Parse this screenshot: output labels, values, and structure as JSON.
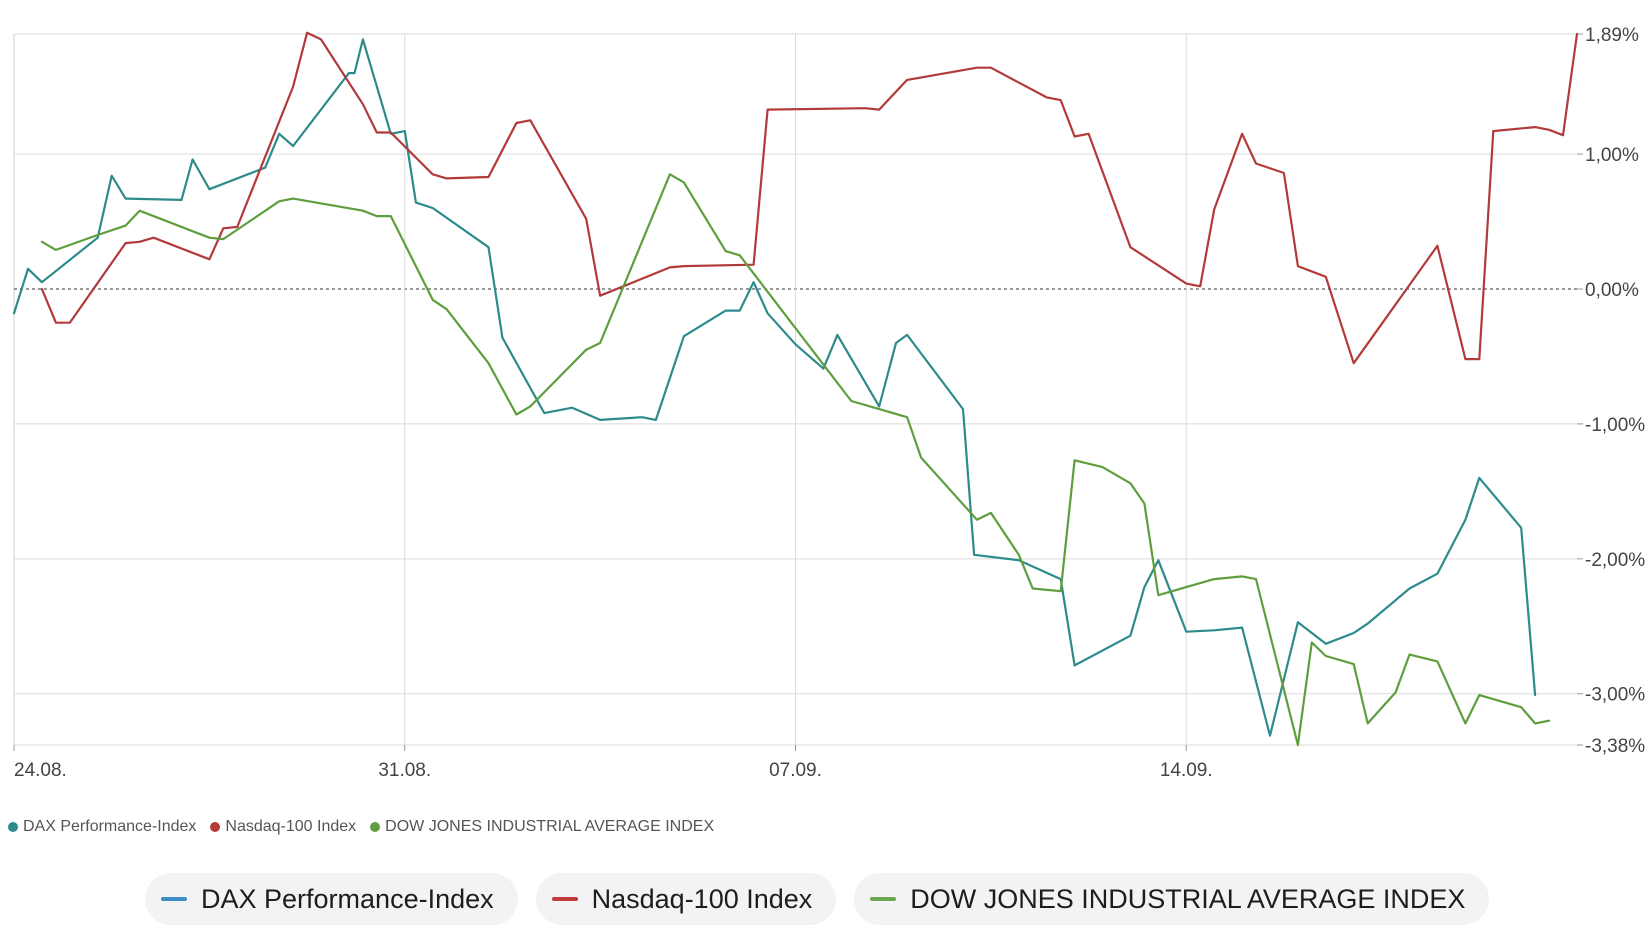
{
  "chart_data": {
    "type": "line",
    "x_ticks": [
      "24.08.",
      "31.08.",
      "07.09.",
      "14.09."
    ],
    "x_range": [
      0,
      28
    ],
    "y_ticks": [
      1.89,
      1.0,
      0.0,
      -1.0,
      -2.0,
      -3.0,
      -3.38
    ],
    "y_tick_labels": [
      "1,89%",
      "1,00%",
      "0,00%",
      "-1,00%",
      "-2,00%",
      "-3,00%",
      "-3,38%"
    ],
    "ylim": [
      -3.38,
      1.89
    ],
    "zero_line": "dashed",
    "grid": true,
    "series": [
      {
        "name": "DAX Performance-Index",
        "color": "#2e8b8b",
        "x": [
          0,
          0.25,
          0.5,
          1.5,
          1.75,
          2.0,
          3.0,
          3.2,
          3.5,
          4.5,
          4.75,
          5.0,
          6.0,
          6.1,
          6.25,
          6.75,
          7.0,
          7.2,
          7.5,
          8.5,
          8.75,
          9.5,
          10.0,
          10.5,
          11.25,
          11.5,
          12.0,
          12.75,
          13.0,
          13.25,
          13.5,
          14.0,
          14.5,
          14.75,
          15.5,
          15.8,
          16.0,
          17.0,
          17.2,
          18.0,
          18.75,
          19.0,
          20.0,
          20.25,
          20.5,
          21.0,
          21.5,
          22.0,
          22.5,
          23.0,
          23.5,
          24.0,
          24.25,
          25.0,
          25.5,
          26.0,
          26.25,
          27.0,
          27.25
        ]
      },
      {
        "name": "Nasdaq-100 Index",
        "color": "#b23a3a",
        "x": [
          0.5,
          0.75,
          1.0,
          2.0,
          2.25,
          2.5,
          3.5,
          3.75,
          4.0,
          5.0,
          5.25,
          5.5,
          6.25,
          6.5,
          6.75,
          7.5,
          7.75,
          8.5,
          9.0,
          9.25,
          10.25,
          10.5,
          11.75,
          12.0,
          13.25,
          13.5,
          15.25,
          15.5,
          16.0,
          17.25,
          17.5,
          18.5,
          18.75,
          19.0,
          19.25,
          20.0,
          21.0,
          21.25,
          21.5,
          22.0,
          22.25,
          22.75,
          23.0,
          23.5,
          24.0,
          25.5,
          26.0,
          26.25,
          26.5,
          27.25,
          27.5,
          27.75,
          28.0
        ]
      },
      {
        "name": "DOW JONES INDUSTRIAL AVERAGE INDEX",
        "color": "#5f9e3e",
        "x": [
          0.5,
          0.75,
          1.5,
          2.0,
          2.25,
          3.5,
          3.75,
          4.75,
          5.0,
          6.25,
          6.5,
          6.75,
          7.5,
          7.75,
          8.5,
          9.0,
          9.25,
          10.25,
          10.5,
          11.75,
          12.0,
          12.75,
          13.0,
          15.0,
          15.5,
          16.0,
          16.25,
          17.25,
          17.5,
          18.0,
          18.25,
          18.75,
          19.0,
          19.5,
          20.0,
          20.25,
          20.5,
          21.0,
          21.5,
          22.0,
          22.25,
          23.0,
          23.25,
          23.5,
          24.0,
          24.25,
          24.75,
          25.0,
          25.5,
          26.0,
          26.25,
          27.0,
          27.25,
          27.5
        ]
      }
    ],
    "series_y": [
      [
        -0.18,
        0.15,
        0.05,
        0.38,
        0.84,
        0.67,
        0.66,
        0.96,
        0.74,
        0.9,
        1.15,
        1.06,
        1.6,
        1.6,
        1.85,
        1.15,
        1.17,
        0.64,
        0.6,
        0.31,
        -0.36,
        -0.92,
        -0.88,
        -0.97,
        -0.95,
        -0.97,
        -0.35,
        -0.16,
        -0.16,
        0.05,
        -0.18,
        -0.41,
        -0.59,
        -0.34,
        -0.87,
        -0.4,
        -0.34,
        -0.89,
        -1.97,
        -2.01,
        -2.15,
        -2.79,
        -2.57,
        -2.21,
        -2.01,
        -2.54,
        -2.53,
        -2.51,
        -3.31,
        -2.47,
        -2.63,
        -2.55,
        -2.48,
        -2.22,
        -2.11,
        -1.71,
        -1.4,
        -1.77,
        -3.01
      ],
      [
        0.0,
        -0.25,
        -0.25,
        0.34,
        0.35,
        0.38,
        0.22,
        0.45,
        0.46,
        1.5,
        1.9,
        1.85,
        1.37,
        1.16,
        1.16,
        0.85,
        0.82,
        0.83,
        1.23,
        1.25,
        0.52,
        -0.05,
        0.16,
        0.17,
        0.18,
        1.33,
        1.34,
        1.33,
        1.55,
        1.64,
        1.64,
        1.42,
        1.4,
        1.13,
        1.15,
        0.31,
        0.04,
        0.02,
        0.59,
        1.15,
        0.93,
        0.86,
        0.17,
        0.09,
        -0.55,
        0.32,
        -0.52,
        -0.52,
        1.17,
        1.2,
        1.18,
        1.14,
        1.89
      ],
      [
        0.35,
        0.29,
        0.4,
        0.47,
        0.58,
        0.38,
        0.37,
        0.65,
        0.67,
        0.58,
        0.54,
        0.54,
        -0.08,
        -0.15,
        -0.55,
        -0.93,
        -0.87,
        -0.45,
        -0.4,
        0.85,
        0.79,
        0.28,
        0.25,
        -0.83,
        -0.89,
        -0.95,
        -1.25,
        -1.71,
        -1.66,
        -1.97,
        -2.22,
        -2.24,
        -1.27,
        -1.32,
        -1.44,
        -1.59,
        -2.27,
        -2.21,
        -2.15,
        -2.13,
        -2.15,
        -3.38,
        -2.62,
        -2.72,
        -2.78,
        -3.22,
        -2.99,
        -2.71,
        -2.76,
        -3.22,
        -3.01,
        -3.1,
        -3.22,
        -3.2
      ]
    ]
  },
  "mini_legend": [
    {
      "label": "DAX Performance-Index",
      "color": "#2e8b8b"
    },
    {
      "label": "Nasdaq-100 Index",
      "color": "#b23a3a"
    },
    {
      "label": "DOW JONES INDUSTRIAL AVERAGE INDEX",
      "color": "#5f9e3e"
    }
  ],
  "series_buttons": [
    {
      "label": "DAX Performance-Index",
      "color": "#3b8fc4"
    },
    {
      "label": "Nasdaq-100 Index",
      "color": "#c23a3a"
    },
    {
      "label": "DOW JONES INDUSTRIAL AVERAGE INDEX",
      "color": "#6aa84f"
    }
  ]
}
